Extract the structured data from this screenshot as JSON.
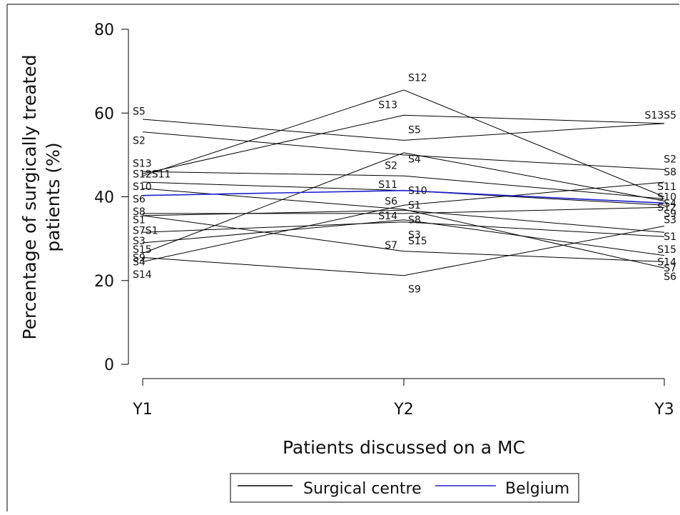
{
  "chart_data": {
    "type": "line",
    "title": "",
    "xlabel": "Patients discussed on a MC",
    "ylabel_lines": [
      "Percentage of surgically treated",
      "patients (%)"
    ],
    "categories": [
      "Y1",
      "Y2",
      "Y3"
    ],
    "ylim": [
      0,
      80
    ],
    "yticks": [
      0,
      20,
      40,
      60,
      80
    ],
    "grid": false,
    "legend_position": "bottom",
    "legend": [
      {
        "label": "Surgical centre",
        "color": "#000000"
      },
      {
        "label": "Belgium",
        "color": "#1f1fd1"
      }
    ],
    "series": [
      {
        "name": "S1",
        "group": "Surgical centre",
        "values": [
          35.5,
          36.8,
          31.5
        ]
      },
      {
        "name": "S2",
        "group": "Surgical centre",
        "values": [
          55.5,
          50.0,
          46.5
        ]
      },
      {
        "name": "S3",
        "group": "Surgical centre",
        "values": [
          31.5,
          34.0,
          30.5
        ]
      },
      {
        "name": "S4",
        "group": "Surgical centre",
        "values": [
          26.5,
          50.5,
          39.0
        ]
      },
      {
        "name": "S5",
        "group": "Surgical centre",
        "values": [
          58.5,
          53.5,
          57.5
        ]
      },
      {
        "name": "S6",
        "group": "Surgical centre",
        "values": [
          42.0,
          37.0,
          23.0
        ]
      },
      {
        "name": "S7",
        "group": "Surgical centre",
        "values": [
          35.5,
          27.0,
          24.5
        ]
      },
      {
        "name": "S8",
        "group": "Surgical centre",
        "values": [
          36.0,
          36.0,
          37.5
        ]
      },
      {
        "name": "S9",
        "group": "Surgical centre",
        "values": [
          25.5,
          21.2,
          33.0
        ]
      },
      {
        "name": "S10",
        "group": "Surgical centre",
        "values": [
          43.5,
          41.5,
          38.0
        ]
      },
      {
        "name": "S11",
        "group": "Surgical centre",
        "values": [
          46.0,
          45.0,
          39.5
        ]
      },
      {
        "name": "S12",
        "group": "Surgical centre",
        "values": [
          45.0,
          65.5,
          40.0
        ]
      },
      {
        "name": "S13",
        "group": "Surgical centre",
        "values": [
          45.5,
          59.5,
          57.5
        ]
      },
      {
        "name": "S14",
        "group": "Surgical centre",
        "values": [
          24.5,
          38.0,
          43.5
        ]
      },
      {
        "name": "S15",
        "group": "Surgical centre",
        "values": [
          29.0,
          34.5,
          26.0
        ]
      },
      {
        "group": "Belgium",
        "color": "#1f1fd1",
        "values": [
          40.3,
          41.5,
          38.5
        ]
      }
    ],
    "point_labels": [
      {
        "text": "S5",
        "at": 0,
        "y": 60.5
      },
      {
        "text": "S2",
        "at": 0,
        "y": 53.5
      },
      {
        "text": "S13",
        "at": 0,
        "y": 48.0
      },
      {
        "text": "S12S11",
        "at": 0,
        "y": 45.5
      },
      {
        "text": "S10",
        "at": 0,
        "y": 42.5
      },
      {
        "text": "S6",
        "at": 0,
        "y": 39.5
      },
      {
        "text": "S8",
        "at": 0,
        "y": 36.5
      },
      {
        "text": "S1",
        "at": 0,
        "y": 34.5
      },
      {
        "text": "S7S1",
        "at": 0,
        "y": 32.0
      },
      {
        "text": "S3",
        "at": 0,
        "y": 29.5
      },
      {
        "text": "S15",
        "at": 0,
        "y": 27.5
      },
      {
        "text": "S9",
        "at": 0,
        "y": 25.5
      },
      {
        "text": "S4",
        "at": 0,
        "y": 24.5
      },
      {
        "text": "S14",
        "at": 0,
        "y": 21.5
      },
      {
        "text": "S12",
        "at": 1,
        "y": 68.5
      },
      {
        "text": "S13",
        "at": 1,
        "y": 62.0
      },
      {
        "text": "S5",
        "at": 1,
        "y": 56.0
      },
      {
        "text": "S2",
        "at": 1,
        "y": 47.5
      },
      {
        "text": "S4",
        "at": 1,
        "y": 49.0
      },
      {
        "text": "S11",
        "at": 1,
        "y": 43.0
      },
      {
        "text": "S10",
        "at": 1,
        "y": 41.5
      },
      {
        "text": "S6",
        "at": 1,
        "y": 39.0
      },
      {
        "text": "S1",
        "at": 1,
        "y": 38.0
      },
      {
        "text": "S14",
        "at": 1,
        "y": 35.5
      },
      {
        "text": "S8",
        "at": 1,
        "y": 34.5
      },
      {
        "text": "S3",
        "at": 1,
        "y": 31.0
      },
      {
        "text": "S15",
        "at": 1,
        "y": 29.5
      },
      {
        "text": "S7",
        "at": 1,
        "y": 28.5
      },
      {
        "text": "S9",
        "at": 1,
        "y": 18.0
      },
      {
        "text": "S13S5",
        "at": 2,
        "y": 59.5
      },
      {
        "text": "S2",
        "at": 2,
        "y": 49.0
      },
      {
        "text": "S8",
        "at": 2,
        "y": 46.0
      },
      {
        "text": "S11",
        "at": 2,
        "y": 42.5
      },
      {
        "text": "S10",
        "at": 2,
        "y": 40.0
      },
      {
        "text": "S4",
        "at": 2,
        "y": 38.5
      },
      {
        "text": "S12",
        "at": 2,
        "y": 37.5
      },
      {
        "text": "S9",
        "at": 2,
        "y": 36.0
      },
      {
        "text": "S3",
        "at": 2,
        "y": 34.5
      },
      {
        "text": "S1",
        "at": 2,
        "y": 30.5
      },
      {
        "text": "S15",
        "at": 2,
        "y": 27.5
      },
      {
        "text": "S14",
        "at": 2,
        "y": 24.5
      },
      {
        "text": "S7",
        "at": 2,
        "y": 23.0
      },
      {
        "text": "S6",
        "at": 2,
        "y": 21.0
      }
    ]
  }
}
